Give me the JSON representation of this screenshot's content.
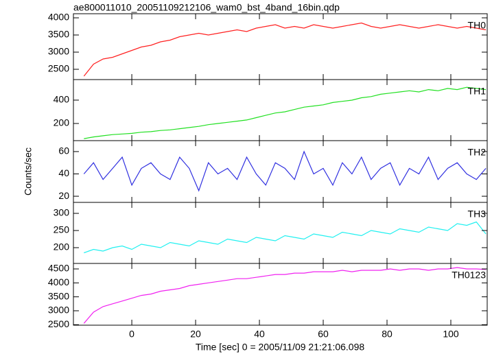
{
  "chart_data": {
    "type": "line",
    "title": "ae800011010_20051109212106_wam0_bst_4band_16bin.qdp",
    "xlabel": "Time [sec] 0 = 2005/11/09 21:21:06.098",
    "ylabel": "Counts/sec",
    "x": [
      -15,
      -12,
      -9,
      -6,
      -3,
      0,
      3,
      6,
      9,
      12,
      15,
      18,
      21,
      24,
      27,
      30,
      33,
      36,
      39,
      42,
      45,
      48,
      51,
      54,
      57,
      60,
      63,
      66,
      69,
      72,
      75,
      78,
      81,
      84,
      87,
      90,
      93,
      96,
      99,
      102,
      105,
      108,
      111
    ],
    "xlim": [
      -18.3,
      111.4
    ],
    "xticks": [
      0,
      20,
      40,
      60,
      80,
      100
    ],
    "series": [
      {
        "name": "TH0",
        "color": "#ff2020",
        "ylim": [
          2200,
          4120
        ],
        "yticks": [
          2500,
          3000,
          3500,
          4000
        ],
        "values": [
          2300,
          2650,
          2800,
          2850,
          2950,
          3050,
          3150,
          3200,
          3300,
          3350,
          3450,
          3500,
          3550,
          3500,
          3550,
          3600,
          3650,
          3600,
          3700,
          3750,
          3800,
          3700,
          3750,
          3700,
          3800,
          3750,
          3700,
          3750,
          3800,
          3850,
          3750,
          3700,
          3750,
          3800,
          3750,
          3700,
          3750,
          3800,
          3750,
          3700,
          3750,
          3700,
          3650
        ]
      },
      {
        "name": "TH1",
        "color": "#20e020",
        "ylim": [
          53,
          576
        ],
        "yticks": [
          200,
          400
        ],
        "values": [
          70,
          85,
          95,
          105,
          110,
          115,
          125,
          130,
          140,
          145,
          155,
          165,
          175,
          190,
          200,
          210,
          220,
          230,
          250,
          270,
          290,
          300,
          320,
          340,
          350,
          360,
          380,
          390,
          400,
          420,
          430,
          450,
          460,
          470,
          480,
          470,
          490,
          480,
          500,
          490,
          510,
          500,
          490
        ]
      },
      {
        "name": "TH2",
        "color": "#3030e0",
        "ylim": [
          14.5,
          69.8
        ],
        "yticks": [
          20,
          40,
          60
        ],
        "values": [
          40,
          50,
          35,
          45,
          55,
          30,
          45,
          50,
          40,
          35,
          55,
          45,
          25,
          50,
          40,
          45,
          35,
          55,
          40,
          30,
          50,
          45,
          35,
          60,
          40,
          45,
          30,
          50,
          40,
          55,
          35,
          45,
          50,
          30,
          45,
          40,
          55,
          35,
          45,
          50,
          40,
          35,
          45
        ]
      },
      {
        "name": "TH3",
        "color": "#20f0f0",
        "ylim": [
          154,
          332
        ],
        "yticks": [
          200,
          250,
          300
        ],
        "values": [
          185,
          195,
          190,
          200,
          205,
          195,
          210,
          205,
          200,
          215,
          210,
          205,
          220,
          215,
          210,
          225,
          220,
          215,
          230,
          225,
          220,
          235,
          230,
          225,
          240,
          235,
          230,
          245,
          240,
          235,
          250,
          245,
          240,
          255,
          250,
          245,
          260,
          255,
          250,
          270,
          265,
          275,
          240
        ]
      },
      {
        "name": "TH0123",
        "color": "#f020f0",
        "ylim": [
          2483,
          4697
        ],
        "yticks": [
          2500,
          3000,
          3500,
          4000,
          4500
        ],
        "values": [
          2550,
          2950,
          3150,
          3250,
          3350,
          3450,
          3550,
          3600,
          3700,
          3750,
          3800,
          3900,
          3950,
          4000,
          4050,
          4100,
          4150,
          4150,
          4200,
          4250,
          4300,
          4300,
          4350,
          4350,
          4400,
          4400,
          4400,
          4450,
          4400,
          4450,
          4450,
          4450,
          4500,
          4450,
          4500,
          4500,
          4450,
          4500,
          4500,
          4550,
          4500,
          4500,
          4480
        ]
      }
    ]
  }
}
